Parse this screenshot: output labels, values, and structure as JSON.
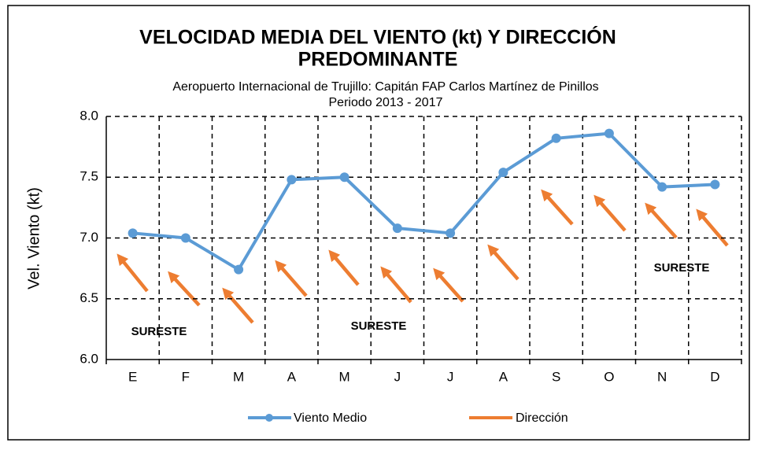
{
  "chart_data": {
    "type": "line",
    "title": [
      "VELOCIDAD MEDIA DEL VIENTO (kt) Y DIRECCIÓN",
      "PREDOMINANTE"
    ],
    "subtitle": [
      "Aeropuerto Internacional de Trujillo:  Capitán FAP Carlos Martínez de Pinillos",
      "Periodo 2013 - 2017"
    ],
    "y_label": "Vel. Viento (kt)",
    "categories": [
      "E",
      "F",
      "M",
      "A",
      "M",
      "J",
      "J",
      "A",
      "S",
      "O",
      "N",
      "D"
    ],
    "series": [
      {
        "name": "Viento Medio",
        "color": "#5b9bd5",
        "values": [
          7.04,
          7.0,
          6.74,
          7.48,
          7.5,
          7.08,
          7.04,
          7.54,
          7.82,
          7.86,
          7.42,
          7.44
        ]
      },
      {
        "name": "Dirección",
        "color": "#ed7d31"
      }
    ],
    "ylim": [
      6,
      8
    ],
    "yticks": [
      {
        "value": 6,
        "label": "6.0"
      },
      6.5,
      {
        "value": 7,
        "label": "7.0"
      },
      7.5,
      {
        "value": 8,
        "label": "8.0"
      }
    ],
    "grid": true,
    "annotations": [
      "SURESTE",
      "SURESTE",
      "SURESTE"
    ],
    "legend": "bottom"
  }
}
